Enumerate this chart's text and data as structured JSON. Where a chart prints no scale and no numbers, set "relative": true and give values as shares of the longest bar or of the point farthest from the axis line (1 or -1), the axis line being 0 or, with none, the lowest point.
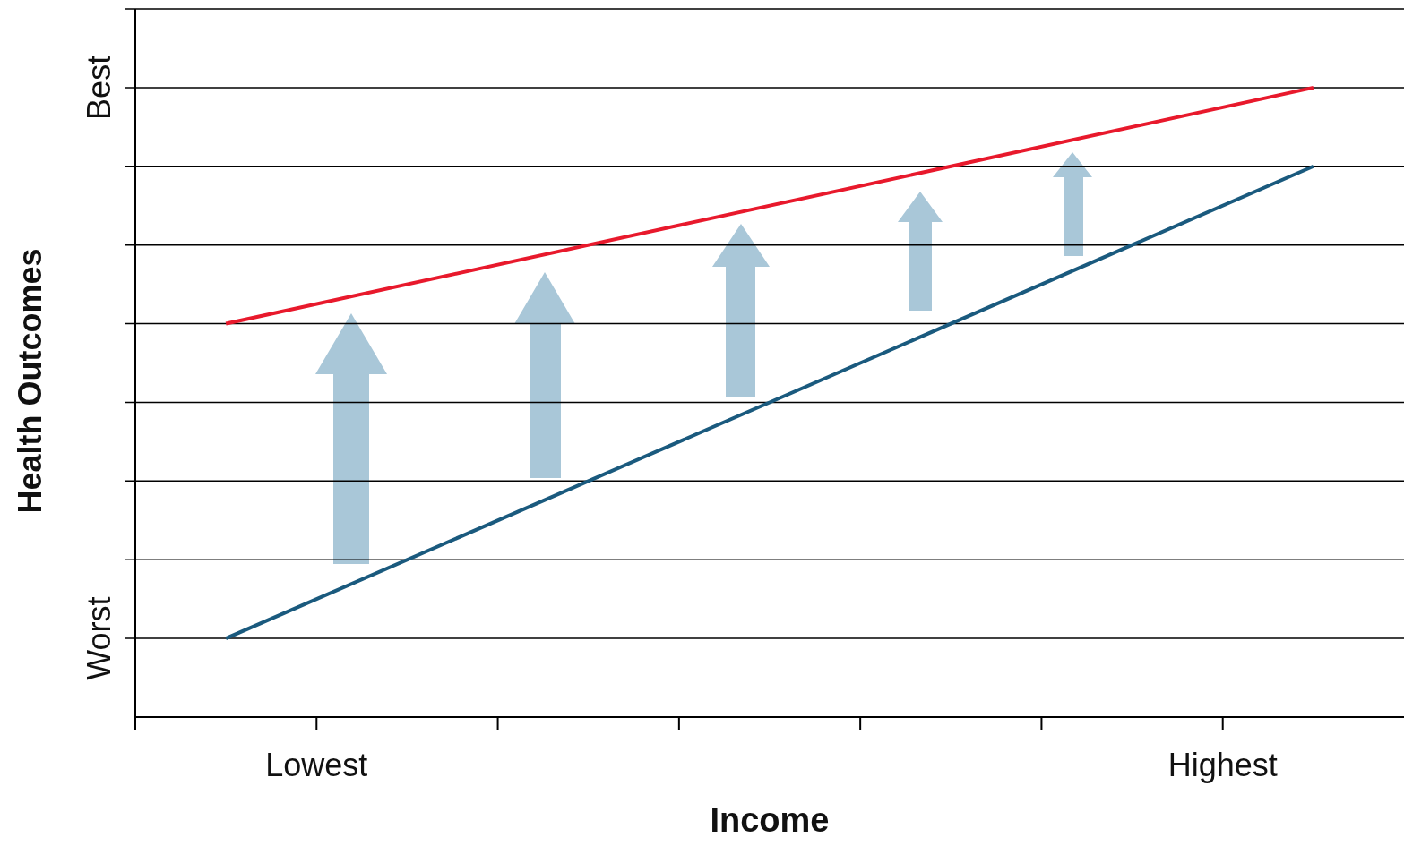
{
  "chart_data": {
    "type": "line",
    "xlabel": "Income",
    "ylabel": "Health Outcomes",
    "relative": true,
    "categories": [
      null,
      null
    ],
    "annotations": [
      "Lowest",
      "Highest"
    ],
    "ref_lines": [
      {
        "axis": "y",
        "value": 0.125,
        "label": "Worst",
        "color": "#000000"
      },
      {
        "axis": "y",
        "value": 0.25,
        "label": null,
        "color": "#000000"
      },
      {
        "axis": "y",
        "value": 0.375,
        "label": null,
        "color": "#000000"
      },
      {
        "axis": "y",
        "value": 0.5,
        "label": null,
        "color": "#000000"
      },
      {
        "axis": "y",
        "value": 0.625,
        "label": null,
        "color": "#000000"
      },
      {
        "axis": "y",
        "value": 0.75,
        "label": null,
        "color": "#000000"
      },
      {
        "axis": "y",
        "value": 0.875,
        "label": null,
        "color": "#000000"
      },
      {
        "axis": "y",
        "value": 1,
        "label": "Best",
        "color": "#000000"
      },
      {
        "axis": "y",
        "value": 1.125,
        "label": null,
        "color": "#000000"
      }
    ],
    "series": [
      {
        "color": "#e8192c",
        "values": [
          0.625,
          1
        ]
      },
      {
        "color": "#1a5a7e",
        "values": [
          0.125,
          0.875
        ]
      }
    ]
  }
}
